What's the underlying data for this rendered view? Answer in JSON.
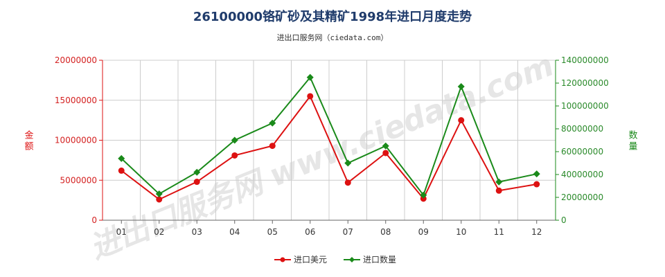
{
  "title": "26100000铬矿砂及其精矿1998年进口月度走势",
  "subtitle": "进出口服务网（ciedata.com）",
  "watermark": "进出口服务网 www.ciedata.com",
  "colors": {
    "usd": "#dd1111",
    "qty": "#1a8a1a",
    "grid": "#cccccc",
    "axis": "#666666"
  },
  "chart_data": {
    "type": "line",
    "categories": [
      "01",
      "02",
      "03",
      "04",
      "05",
      "06",
      "07",
      "08",
      "09",
      "10",
      "11",
      "12"
    ],
    "series": [
      {
        "name": "进口美元",
        "axis": "left",
        "marker": "circle",
        "values": [
          6200000,
          2600000,
          4800000,
          8100000,
          9300000,
          15500000,
          4700000,
          8400000,
          2700000,
          12500000,
          3700000,
          4500000
        ]
      },
      {
        "name": "进口数量",
        "axis": "right",
        "marker": "diamond",
        "values": [
          54000000,
          23000000,
          42000000,
          70000000,
          85000000,
          125000000,
          50000000,
          65000000,
          22000000,
          117000000,
          33500000,
          40500000
        ]
      }
    ],
    "ylabel_left": "金额",
    "ylabel_right": "数量",
    "ylim_left": [
      0,
      20000000
    ],
    "ylim_right": [
      0,
      140000000
    ],
    "yticks_left": [
      "0",
      "5000000",
      "10000000",
      "15000000",
      "20000000"
    ],
    "yticks_right": [
      "0",
      "20000000",
      "40000000",
      "60000000",
      "80000000",
      "100000000",
      "120000000",
      "140000000"
    ],
    "grid": true,
    "legend_position": "bottom-center"
  }
}
